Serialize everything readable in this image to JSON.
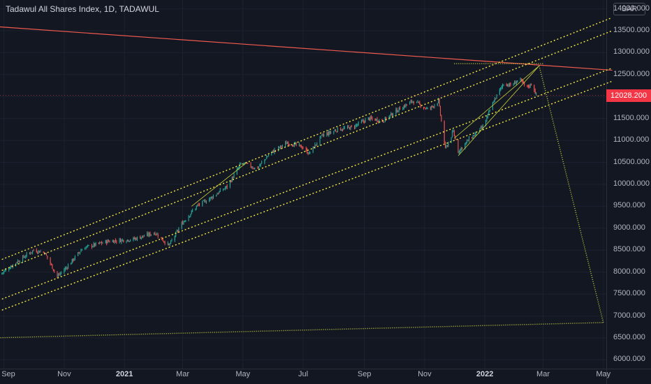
{
  "header": {
    "title": "Tadawul All Shares Index, 1D, TADAWUL",
    "currency": "SAR"
  },
  "chart_data": {
    "type": "candlestick",
    "title": "Tadawul All Shares Index, 1D, TADAWUL",
    "current_price": "12028.200",
    "y_tick_labels": [
      "14000.000",
      "13500.000",
      "13000.000",
      "12500.000",
      "12000.000",
      "11500.000",
      "11000.000",
      "10500.000",
      "10000.000",
      "9500.000",
      "9000.000",
      "8500.000",
      "8000.000",
      "7500.000",
      "7000.000",
      "6500.000",
      "6000.000"
    ],
    "y_ticks": [
      14000,
      13500,
      13000,
      12500,
      12000,
      11500,
      11000,
      10500,
      10000,
      9500,
      9000,
      8500,
      8000,
      7500,
      7000,
      6500,
      6000
    ],
    "ylim": [
      5800,
      14200
    ],
    "x_ticks": [
      {
        "label": "Sep",
        "date": "2020-09-01",
        "bold": false
      },
      {
        "label": "Nov",
        "date": "2020-11-01",
        "bold": false
      },
      {
        "label": "2021",
        "date": "2021-01-01",
        "bold": true
      },
      {
        "label": "Mar",
        "date": "2021-03-01",
        "bold": false
      },
      {
        "label": "May",
        "date": "2021-05-01",
        "bold": false
      },
      {
        "label": "Jul",
        "date": "2021-07-01",
        "bold": false
      },
      {
        "label": "Sep",
        "date": "2021-09-01",
        "bold": false
      },
      {
        "label": "Nov",
        "date": "2021-11-01",
        "bold": false
      },
      {
        "label": "2022",
        "date": "2022-01-01",
        "bold": true
      },
      {
        "label": "Mar",
        "date": "2022-03-01",
        "bold": false
      },
      {
        "label": "May",
        "date": "2022-05-01",
        "bold": false
      }
    ],
    "xlim": [
      "2020-08-28",
      "2022-05-04"
    ],
    "grid": true,
    "colors": {
      "background": "#131722",
      "grid": "#1e2230",
      "up": "#26a69a",
      "down": "#ef5350",
      "resistance": "#f05a4f",
      "channel": "#f5e945",
      "projection": "#c9d43f",
      "price_tag": "#f23645"
    },
    "price_anchors": [
      [
        "2020-08-28",
        7950
      ],
      [
        "2020-09-12",
        8200
      ],
      [
        "2020-10-01",
        8500
      ],
      [
        "2020-10-12",
        8450
      ],
      [
        "2020-10-25",
        7900
      ],
      [
        "2020-11-03",
        8100
      ],
      [
        "2020-11-20",
        8550
      ],
      [
        "2020-12-15",
        8700
      ],
      [
        "2021-01-10",
        8750
      ],
      [
        "2021-02-01",
        8900
      ],
      [
        "2021-02-15",
        8600
      ],
      [
        "2021-02-28",
        9100
      ],
      [
        "2021-03-15",
        9500
      ],
      [
        "2021-03-30",
        9700
      ],
      [
        "2021-04-15",
        9950
      ],
      [
        "2021-04-30",
        10500
      ],
      [
        "2021-05-15",
        10350
      ],
      [
        "2021-05-28",
        10700
      ],
      [
        "2021-06-15",
        10950
      ],
      [
        "2021-06-30",
        10850
      ],
      [
        "2021-07-07",
        10700
      ],
      [
        "2021-07-20",
        11100
      ],
      [
        "2021-08-05",
        11250
      ],
      [
        "2021-08-20",
        11300
      ],
      [
        "2021-09-05",
        11500
      ],
      [
        "2021-09-20",
        11450
      ],
      [
        "2021-10-05",
        11700
      ],
      [
        "2021-10-20",
        11900
      ],
      [
        "2021-11-05",
        11700
      ],
      [
        "2021-11-15",
        11900
      ],
      [
        "2021-11-22",
        10800
      ],
      [
        "2021-11-30",
        11200
      ],
      [
        "2021-12-05",
        10750
      ],
      [
        "2021-12-15",
        11000
      ],
      [
        "2021-12-30",
        11300
      ],
      [
        "2022-01-10",
        11900
      ],
      [
        "2022-01-20",
        12300
      ],
      [
        "2022-01-28",
        12250
      ],
      [
        "2022-02-05",
        12400
      ],
      [
        "2022-02-12",
        12200
      ],
      [
        "2022-02-18",
        12300
      ],
      [
        "2022-02-22",
        12028
      ]
    ],
    "trendlines": [
      {
        "style": "solid",
        "role": "resistance",
        "from": [
          "2020-08-20",
          13600
        ],
        "to": [
          "2022-05-10",
          12600
        ]
      },
      {
        "style": "dotted",
        "role": "channel",
        "from": [
          "2020-08-20",
          8200
        ],
        "to": [
          "2022-05-10",
          13800
        ]
      },
      {
        "style": "dotted",
        "role": "channel",
        "from": [
          "2020-08-20",
          7950
        ],
        "to": [
          "2022-05-10",
          13500
        ]
      },
      {
        "style": "dotted",
        "role": "channel",
        "from": [
          "2020-08-20",
          7300
        ],
        "to": [
          "2022-05-10",
          12650
        ]
      },
      {
        "style": "dotted",
        "role": "channel",
        "from": [
          "2020-08-20",
          7050
        ],
        "to": [
          "2022-05-10",
          12350
        ]
      },
      {
        "style": "dotted",
        "role": "projection",
        "from": [
          "2020-08-20",
          6500
        ],
        "to": [
          "2022-05-01",
          6850
        ]
      },
      {
        "style": "dotted",
        "role": "projection",
        "from": [
          "2022-02-25",
          12700
        ],
        "to": [
          "2022-05-01",
          6850
        ]
      },
      {
        "style": "dotted",
        "role": "projection",
        "from": [
          "2021-12-01",
          12750
        ],
        "to": [
          "2022-03-01",
          12750
        ]
      },
      {
        "style": "thin",
        "role": "projection",
        "from": [
          "2021-12-01",
          11050
        ],
        "to": [
          "2022-02-25",
          12700
        ]
      },
      {
        "style": "thin",
        "role": "projection",
        "from": [
          "2021-12-05",
          10650
        ],
        "to": [
          "2022-02-25",
          12700
        ]
      },
      {
        "style": "thin",
        "role": "projection",
        "from": [
          "2021-03-10",
          9500
        ],
        "to": [
          "2021-05-05",
          10500
        ]
      }
    ]
  }
}
